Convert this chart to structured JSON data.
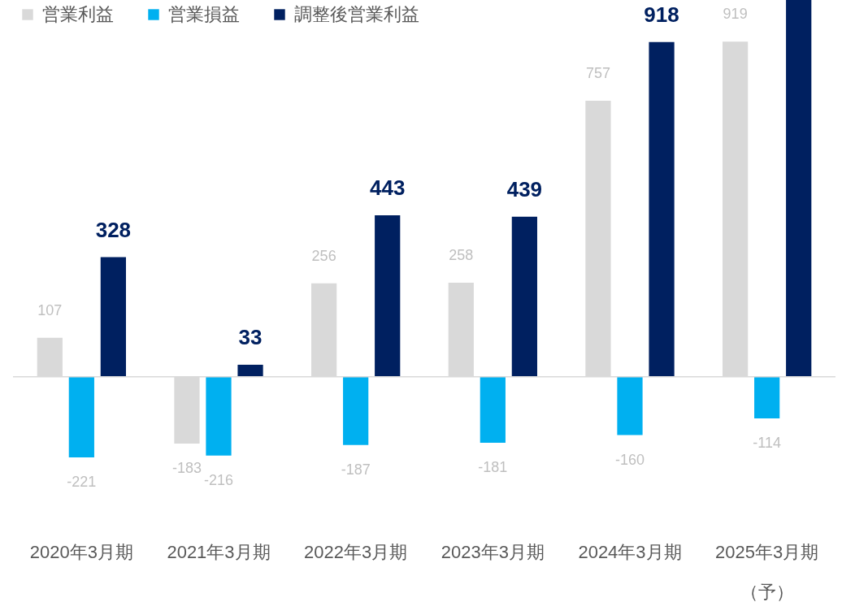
{
  "chart_data": {
    "type": "bar",
    "categories": [
      "2020年3月期",
      "2021年3月期",
      "2022年3月期",
      "2023年3月期",
      "2024年3月期",
      "2025年3月期（予）"
    ],
    "series": [
      {
        "name": "営業利益",
        "color": "#d9d9d9",
        "values": [
          107,
          -183,
          256,
          258,
          757,
          919
        ],
        "value_labels": [
          "107",
          "-183",
          "256",
          "258",
          "757",
          "919"
        ]
      },
      {
        "name": "営業損益",
        "color": "#00b0f0",
        "values": [
          -221,
          -216,
          -187,
          -181,
          -160,
          -114
        ],
        "value_labels": [
          "-221",
          "-216",
          "-187",
          "-181",
          "-160",
          "-114"
        ]
      },
      {
        "name": "調整後営業利益",
        "color": "#002060",
        "values": [
          328,
          33,
          443,
          439,
          918,
          1033
        ],
        "value_labels": [
          "328",
          "33",
          "443",
          "439",
          "918",
          null
        ]
      }
    ],
    "ref_lines": [
      {
        "axis": "y",
        "value": 0,
        "color": "#d9d9d9"
      }
    ],
    "legend": "top left",
    "tick_labels": "x"
  }
}
